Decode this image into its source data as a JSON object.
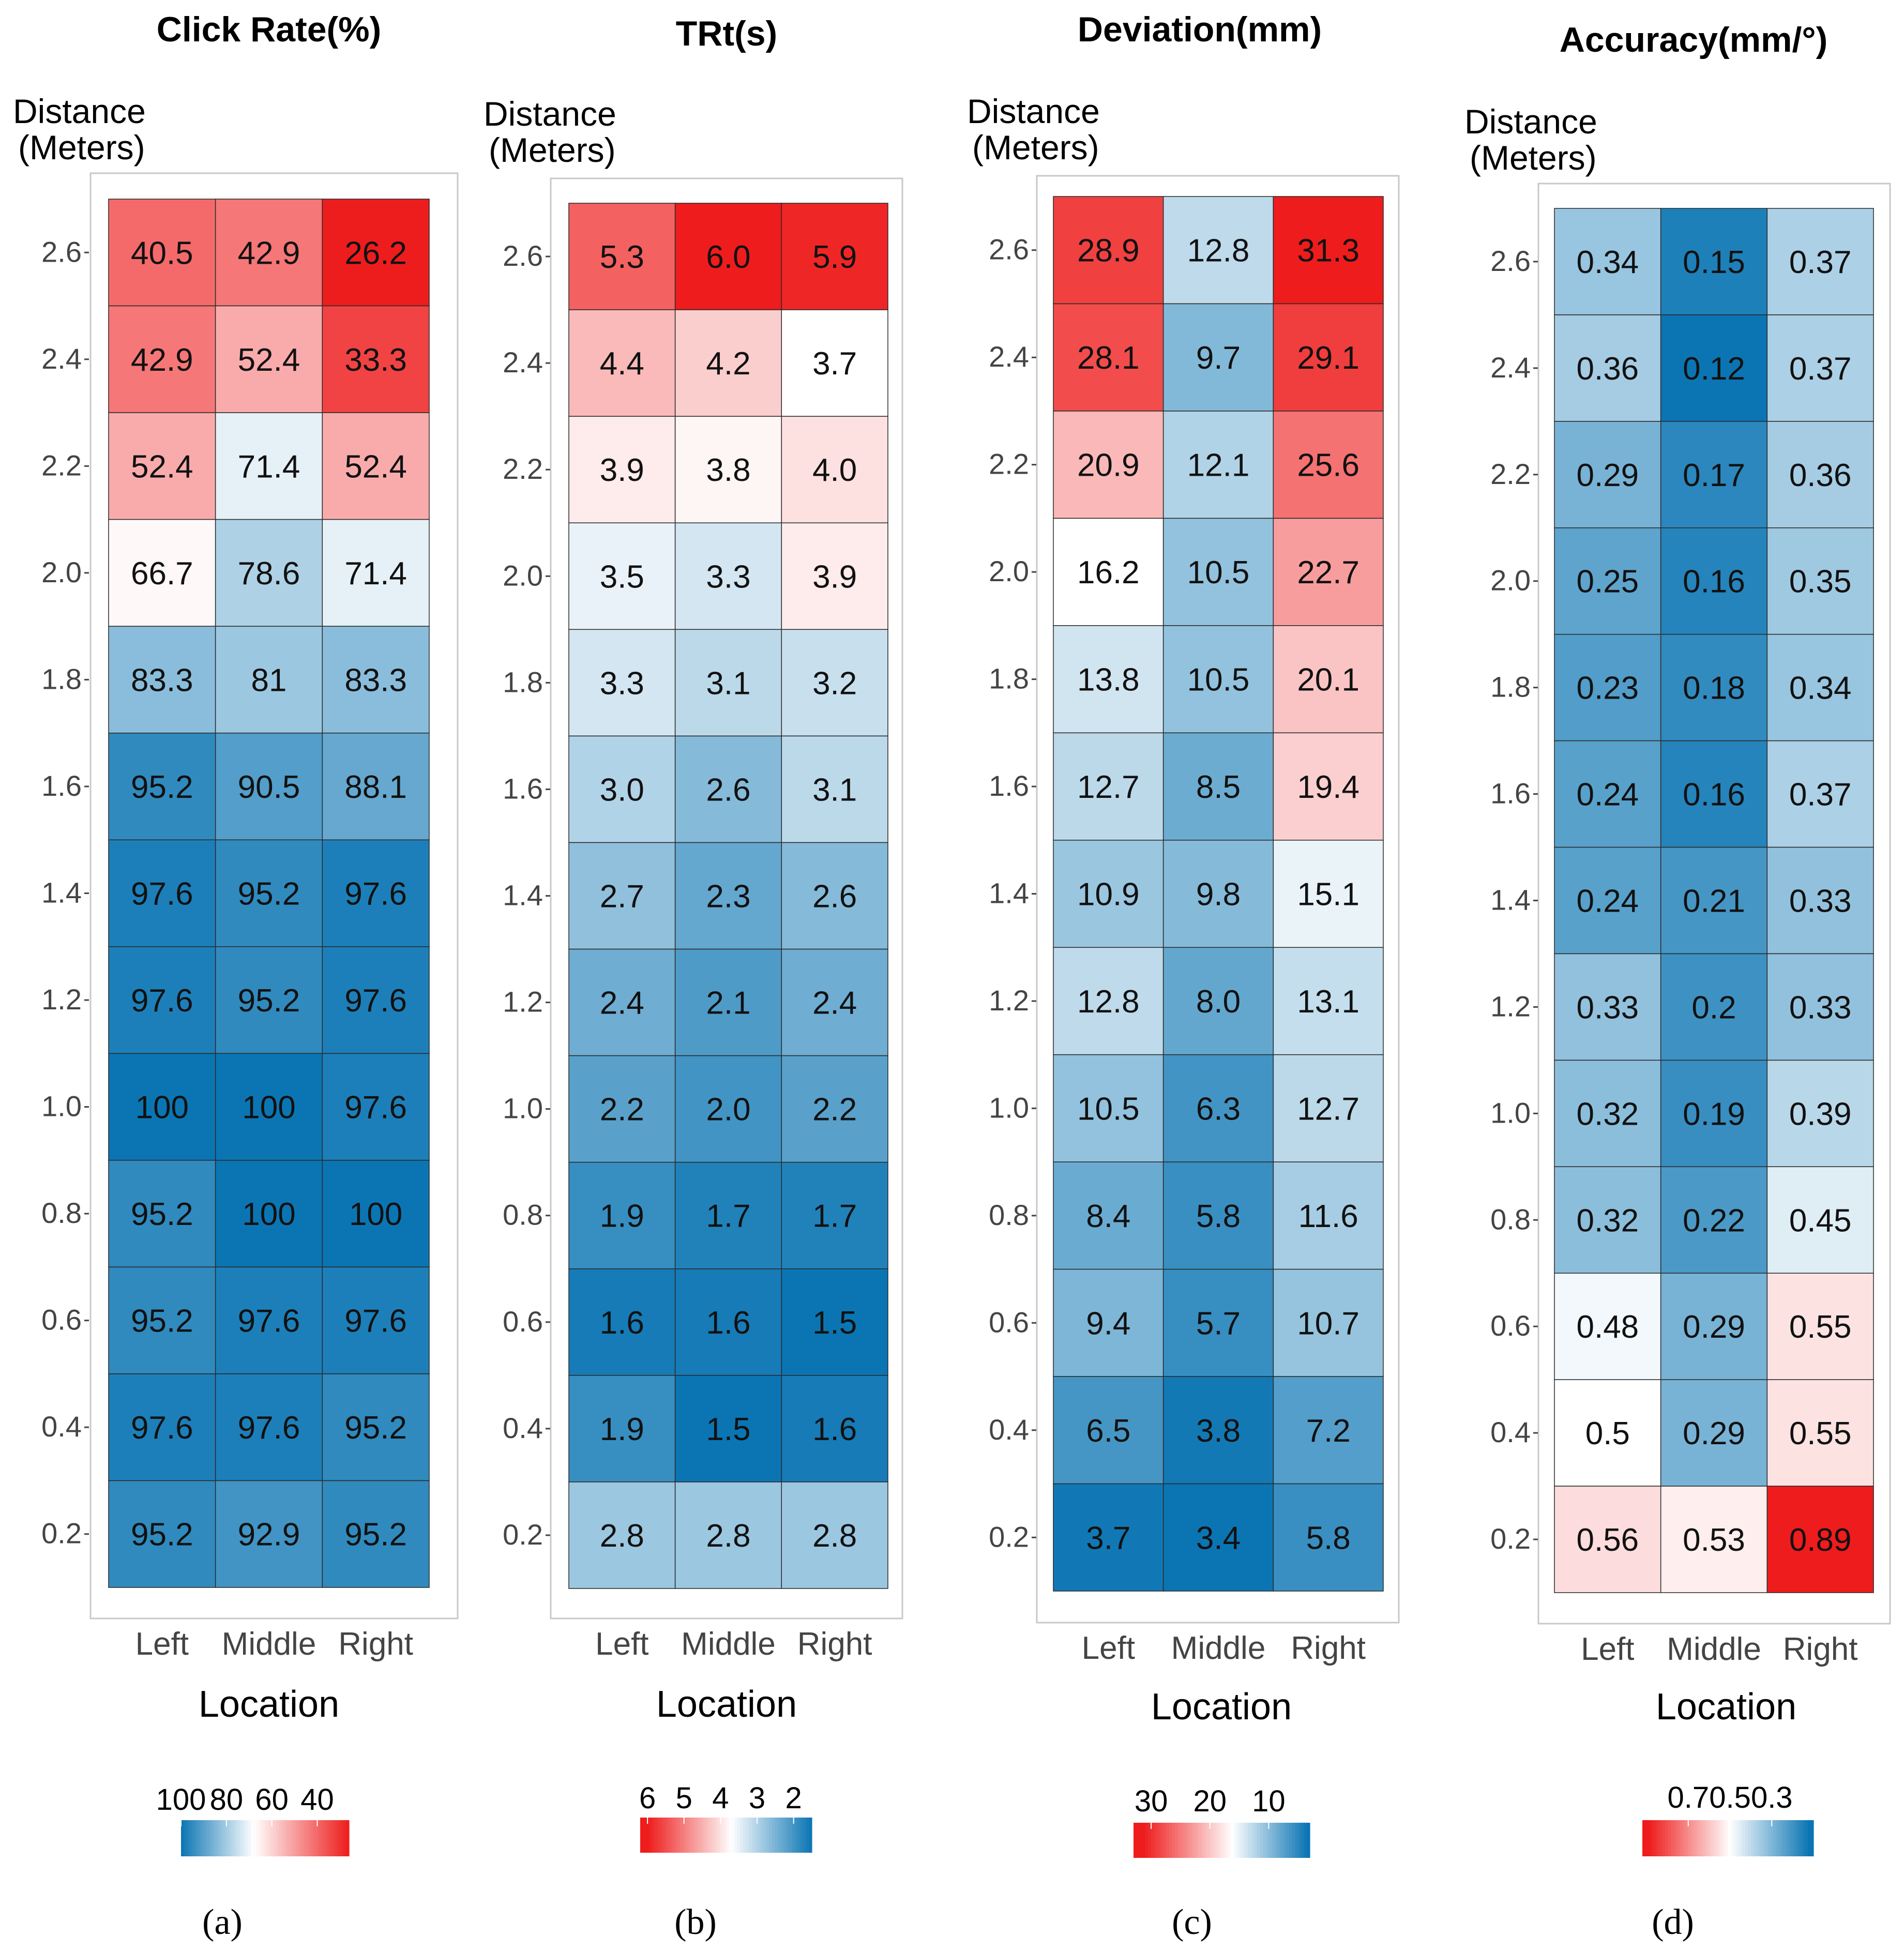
{
  "colors": {
    "low": "#0b75b3",
    "mid": "#ffffff",
    "high": "#ee1c1c"
  },
  "y_axis_label": [
    "Distance",
    "(Meters)"
  ],
  "x_axis_label": "Location",
  "chart_data": [
    {
      "type": "heatmap",
      "title": "Click Rate(%)",
      "panel_label": "(a)",
      "xlabel": "Location",
      "ylabel": "Distance (Meters)",
      "categories": [
        "Left",
        "Middle",
        "Right"
      ],
      "y": [
        2.6,
        2.4,
        2.2,
        2.0,
        1.8,
        1.6,
        1.4,
        1.2,
        1.0,
        0.8,
        0.6,
        0.4,
        0.2
      ],
      "values": [
        [
          40.5,
          42.9,
          26.2
        ],
        [
          42.9,
          52.4,
          33.3
        ],
        [
          52.4,
          71.4,
          52.4
        ],
        [
          66.7,
          78.6,
          71.4
        ],
        [
          83.3,
          81,
          83.3
        ],
        [
          95.2,
          90.5,
          88.1
        ],
        [
          97.6,
          95.2,
          97.6
        ],
        [
          97.6,
          95.2,
          97.6
        ],
        [
          100,
          100,
          97.6
        ],
        [
          95.2,
          100,
          100
        ],
        [
          95.2,
          97.6,
          97.6
        ],
        [
          97.6,
          97.6,
          95.2
        ],
        [
          95.2,
          92.9,
          95.2
        ]
      ],
      "value_labels": [
        [
          "40.5",
          "42.9",
          "26.2"
        ],
        [
          "42.9",
          "52.4",
          "33.3"
        ],
        [
          "52.4",
          "71.4",
          "52.4"
        ],
        [
          "66.7",
          "78.6",
          "71.4"
        ],
        [
          "83.3",
          "81",
          "83.3"
        ],
        [
          "95.2",
          "90.5",
          "88.1"
        ],
        [
          "97.6",
          "95.2",
          "97.6"
        ],
        [
          "97.6",
          "95.2",
          "97.6"
        ],
        [
          "100",
          "100",
          "97.6"
        ],
        [
          "95.2",
          "100",
          "100"
        ],
        [
          "95.2",
          "97.6",
          "97.6"
        ],
        [
          "97.6",
          "97.6",
          "95.2"
        ],
        [
          "95.2",
          "92.9",
          "95.2"
        ]
      ],
      "y_tick_labels": [
        "2.6",
        "2.4",
        "2.2",
        "2.0",
        "1.8",
        "1.6",
        "1.4",
        "1.2",
        "1.0",
        "0.8",
        "0.6",
        "0.4",
        "0.2"
      ],
      "color_scale": {
        "blue_at": 100,
        "white_at": 68,
        "red_at": 26
      },
      "legend": {
        "direction": "blue-to-red",
        "ticks": [
          "100",
          "80",
          "60",
          "40"
        ],
        "tick_values": [
          100,
          80,
          60,
          40
        ],
        "range": [
          100,
          26
        ]
      }
    },
    {
      "type": "heatmap",
      "title": "TRt(s)",
      "panel_label": "(b)",
      "xlabel": "Location",
      "ylabel": "Distance (Meters)",
      "categories": [
        "Left",
        "Middle",
        "Right"
      ],
      "y": [
        2.6,
        2.4,
        2.2,
        2.0,
        1.8,
        1.6,
        1.4,
        1.2,
        1.0,
        0.8,
        0.6,
        0.4,
        0.2
      ],
      "values": [
        [
          5.3,
          6.0,
          5.9
        ],
        [
          4.4,
          4.2,
          3.7
        ],
        [
          3.9,
          3.8,
          4.0
        ],
        [
          3.5,
          3.3,
          3.9
        ],
        [
          3.3,
          3.1,
          3.2
        ],
        [
          3.0,
          2.6,
          3.1
        ],
        [
          2.7,
          2.3,
          2.6
        ],
        [
          2.4,
          2.1,
          2.4
        ],
        [
          2.2,
          2.0,
          2.2
        ],
        [
          1.9,
          1.7,
          1.7
        ],
        [
          1.6,
          1.6,
          1.5
        ],
        [
          1.9,
          1.5,
          1.6
        ],
        [
          2.8,
          2.8,
          2.8
        ]
      ],
      "value_labels": [
        [
          "5.3",
          "6.0",
          "5.9"
        ],
        [
          "4.4",
          "4.2",
          "3.7"
        ],
        [
          "3.9",
          "3.8",
          "4.0"
        ],
        [
          "3.5",
          "3.3",
          "3.9"
        ],
        [
          "3.3",
          "3.1",
          "3.2"
        ],
        [
          "3.0",
          "2.6",
          "3.1"
        ],
        [
          "2.7",
          "2.3",
          "2.6"
        ],
        [
          "2.4",
          "2.1",
          "2.4"
        ],
        [
          "2.2",
          "2.0",
          "2.2"
        ],
        [
          "1.9",
          "1.7",
          "1.7"
        ],
        [
          "1.6",
          "1.6",
          "1.5"
        ],
        [
          "1.9",
          "1.5",
          "1.6"
        ],
        [
          "2.8",
          "2.8",
          "2.8"
        ]
      ],
      "y_tick_labels": [
        "2.6",
        "2.4",
        "2.2",
        "2.0",
        "1.8",
        "1.6",
        "1.4",
        "1.2",
        "1.0",
        "0.8",
        "0.6",
        "0.4",
        "0.2"
      ],
      "color_scale": {
        "blue_at": 1.5,
        "white_at": 3.7,
        "red_at": 6.0
      },
      "legend": {
        "direction": "red-to-blue",
        "ticks": [
          "6",
          "5",
          "4",
          "3",
          "2"
        ],
        "tick_values": [
          6,
          5,
          4,
          3,
          2
        ],
        "range": [
          6.2,
          1.5
        ]
      }
    },
    {
      "type": "heatmap",
      "title": "Deviation(mm)",
      "panel_label": "(c)",
      "xlabel": "Location",
      "ylabel": "Distance (Meters)",
      "categories": [
        "Left",
        "Middle",
        "Right"
      ],
      "y": [
        2.6,
        2.4,
        2.2,
        2.0,
        1.8,
        1.6,
        1.4,
        1.2,
        1.0,
        0.8,
        0.6,
        0.4,
        0.2
      ],
      "values": [
        [
          28.9,
          12.8,
          31.3
        ],
        [
          28.1,
          9.7,
          29.1
        ],
        [
          20.9,
          12.1,
          25.6
        ],
        [
          16.2,
          10.5,
          22.7
        ],
        [
          13.8,
          10.5,
          20.1
        ],
        [
          12.7,
          8.5,
          19.4
        ],
        [
          10.9,
          9.8,
          15.1
        ],
        [
          12.8,
          8.0,
          13.1
        ],
        [
          10.5,
          6.3,
          12.7
        ],
        [
          8.4,
          5.8,
          11.6
        ],
        [
          9.4,
          5.7,
          10.7
        ],
        [
          6.5,
          3.8,
          7.2
        ],
        [
          3.7,
          3.4,
          5.8
        ]
      ],
      "value_labels": [
        [
          "28.9",
          "12.8",
          "31.3"
        ],
        [
          "28.1",
          "9.7",
          "29.1"
        ],
        [
          "20.9",
          "12.1",
          "25.6"
        ],
        [
          "16.2",
          "10.5",
          "22.7"
        ],
        [
          "13.8",
          "10.5",
          "20.1"
        ],
        [
          "12.7",
          "8.5",
          "19.4"
        ],
        [
          "10.9",
          "9.8",
          "15.1"
        ],
        [
          "12.8",
          "8.0",
          "13.1"
        ],
        [
          "10.5",
          "6.3",
          "12.7"
        ],
        [
          "8.4",
          "5.8",
          "11.6"
        ],
        [
          "9.4",
          "5.7",
          "10.7"
        ],
        [
          "6.5",
          "3.8",
          "7.2"
        ],
        [
          "3.7",
          "3.4",
          "5.8"
        ]
      ],
      "y_tick_labels": [
        "2.6",
        "2.4",
        "2.2",
        "2.0",
        "1.8",
        "1.6",
        "1.4",
        "1.2",
        "1.0",
        "0.8",
        "0.6",
        "0.4",
        "0.2"
      ],
      "color_scale": {
        "blue_at": 3.4,
        "white_at": 16.2,
        "red_at": 31.3
      },
      "legend": {
        "direction": "red-to-blue",
        "ticks": [
          "30",
          "20",
          "10"
        ],
        "tick_values": [
          30,
          20,
          10
        ],
        "range": [
          33,
          3
        ]
      }
    },
    {
      "type": "heatmap",
      "title": "Accuracy(mm/°)",
      "panel_label": "(d)",
      "xlabel": "Location",
      "ylabel": "Distance (Meters)",
      "categories": [
        "Left",
        "Middle",
        "Right"
      ],
      "y": [
        2.6,
        2.4,
        2.2,
        2.0,
        1.8,
        1.6,
        1.4,
        1.2,
        1.0,
        0.8,
        0.6,
        0.4,
        0.2
      ],
      "values": [
        [
          0.34,
          0.15,
          0.37
        ],
        [
          0.36,
          0.12,
          0.37
        ],
        [
          0.29,
          0.17,
          0.36
        ],
        [
          0.25,
          0.16,
          0.35
        ],
        [
          0.23,
          0.18,
          0.34
        ],
        [
          0.24,
          0.16,
          0.37
        ],
        [
          0.24,
          0.21,
          0.33
        ],
        [
          0.33,
          0.2,
          0.33
        ],
        [
          0.32,
          0.19,
          0.39
        ],
        [
          0.32,
          0.22,
          0.45
        ],
        [
          0.48,
          0.29,
          0.55
        ],
        [
          0.5,
          0.29,
          0.55
        ],
        [
          0.56,
          0.53,
          0.89
        ]
      ],
      "value_labels": [
        [
          "0.34",
          "0.15",
          "0.37"
        ],
        [
          "0.36",
          "0.12",
          "0.37"
        ],
        [
          "0.29",
          "0.17",
          "0.36"
        ],
        [
          "0.25",
          "0.16",
          "0.35"
        ],
        [
          "0.23",
          "0.18",
          "0.34"
        ],
        [
          "0.24",
          "0.16",
          "0.37"
        ],
        [
          "0.24",
          "0.21",
          "0.33"
        ],
        [
          "0.33",
          "0.2",
          "0.33"
        ],
        [
          "0.32",
          "0.19",
          "0.39"
        ],
        [
          "0.32",
          "0.22",
          "0.45"
        ],
        [
          "0.48",
          "0.29",
          "0.55"
        ],
        [
          "0.5",
          "0.29",
          "0.55"
        ],
        [
          "0.56",
          "0.53",
          "0.89"
        ]
      ],
      "y_tick_labels": [
        "2.6",
        "2.4",
        "2.2",
        "2.0",
        "1.8",
        "1.6",
        "1.4",
        "1.2",
        "1.0",
        "0.8",
        "0.6",
        "0.4",
        "0.2"
      ],
      "color_scale": {
        "blue_at": 0.12,
        "white_at": 0.5,
        "red_at": 0.89
      },
      "legend": {
        "direction": "red-to-blue",
        "ticks": [
          "0.7",
          "0.5",
          "0.3"
        ],
        "tick_values": [
          0.7,
          0.5,
          0.3
        ],
        "range": [
          0.92,
          0.1
        ]
      }
    }
  ]
}
